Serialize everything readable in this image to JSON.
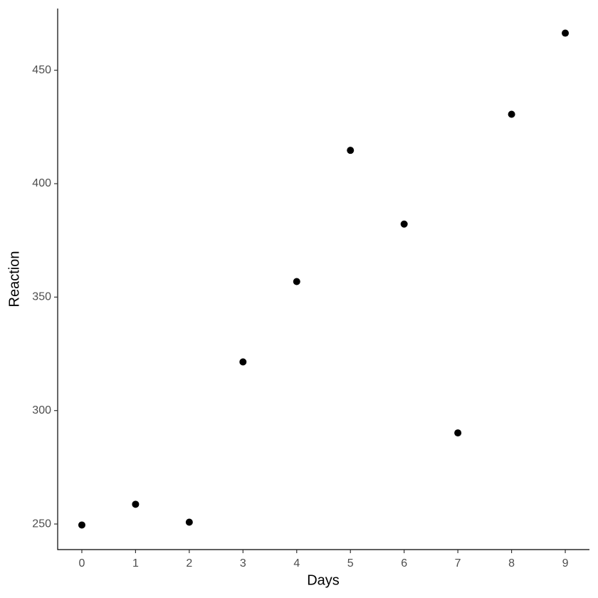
{
  "chart_data": {
    "type": "scatter",
    "x_label": "Days",
    "y_label": "Reaction",
    "x": [
      0,
      1,
      2,
      3,
      4,
      5,
      6,
      7,
      8,
      9
    ],
    "values": [
      249.56,
      258.7,
      250.8,
      321.44,
      356.85,
      414.69,
      382.2,
      290.15,
      430.59,
      466.35
    ],
    "color": "#000000",
    "xlim": [
      -0.45,
      9.45
    ],
    "xticks": [
      0,
      1,
      2,
      3,
      4,
      5,
      6,
      7,
      8,
      9
    ],
    "ylim": [
      238.72,
      477.19
    ],
    "yticks": [
      250,
      300,
      350,
      400,
      450
    ],
    "grid": false
  }
}
